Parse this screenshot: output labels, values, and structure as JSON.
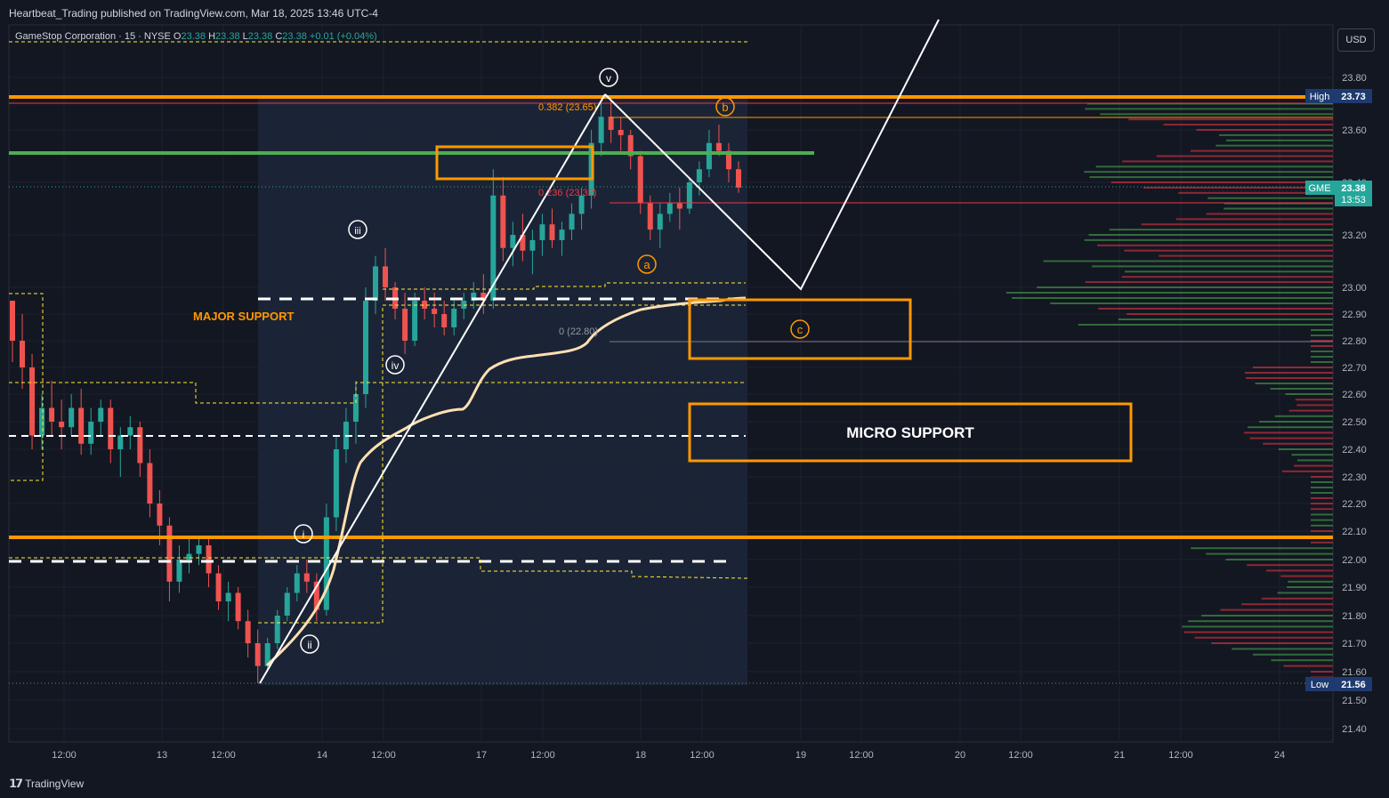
{
  "header": {
    "publisher": "Heartbeat_Trading published on TradingView.com, Mar 18, 2025 13:46 UTC-4",
    "currency": "USD"
  },
  "legend": {
    "symbol": "GameStop Corporation · 15 · NYSE",
    "o_label": "O",
    "o_value": "23.38",
    "h_label": "H",
    "h_value": "23.38",
    "l_label": "L",
    "l_value": "23.38",
    "c_label": "C",
    "c_value": "23.38",
    "change": "+0.01 (+0.04%)"
  },
  "footer": {
    "brand": "TradingView"
  },
  "colors": {
    "background": "#131722",
    "up": "#26a69a",
    "down": "#ef5350",
    "orange": "#ff9800",
    "green_line": "#4caf50",
    "white": "#ffffff",
    "vwap": "#ffe0b2",
    "fib_red": "#f23645"
  },
  "chart_data": {
    "type": "candlestick",
    "symbol": "GME",
    "ylim": [
      21.4,
      23.85
    ],
    "y_ticks": [
      "23.80",
      "23.60",
      "23.40",
      "23.20",
      "23.00",
      "22.90",
      "22.80",
      "22.70",
      "22.60",
      "22.50",
      "22.40",
      "22.30",
      "22.20",
      "22.10",
      "22.00",
      "21.90",
      "21.80",
      "21.70",
      "21.60",
      "21.50",
      "21.40"
    ],
    "x_ticks": [
      "12:00",
      "13",
      "12:00",
      "14",
      "12:00",
      "17",
      "12:00",
      "18",
      "12:00",
      "19",
      "12:00",
      "20",
      "12:00",
      "21",
      "12:00",
      "24"
    ],
    "price_badges": {
      "high_label": "High",
      "high_value": "23.73",
      "symbol_label": "GME",
      "last_value": "23.38",
      "countdown": "13:53",
      "low_label": "Low",
      "low_value": "21.56"
    },
    "candles": [
      [
        22.95,
        22.95,
        22.72,
        22.8
      ],
      [
        22.8,
        22.9,
        22.62,
        22.7
      ],
      [
        22.7,
        22.75,
        22.4,
        22.45
      ],
      [
        22.45,
        22.6,
        22.4,
        22.55
      ],
      [
        22.55,
        22.65,
        22.45,
        22.5
      ],
      [
        22.5,
        22.58,
        22.4,
        22.48
      ],
      [
        22.48,
        22.6,
        22.45,
        22.55
      ],
      [
        22.55,
        22.62,
        22.38,
        22.42
      ],
      [
        22.42,
        22.55,
        22.38,
        22.5
      ],
      [
        22.5,
        22.58,
        22.45,
        22.55
      ],
      [
        22.55,
        22.58,
        22.35,
        22.4
      ],
      [
        22.4,
        22.48,
        22.3,
        22.45
      ],
      [
        22.45,
        22.52,
        22.4,
        22.48
      ],
      [
        22.48,
        22.5,
        22.3,
        22.35
      ],
      [
        22.35,
        22.4,
        22.15,
        22.2
      ],
      [
        22.2,
        22.25,
        22.05,
        22.12
      ],
      [
        22.12,
        22.15,
        21.85,
        21.92
      ],
      [
        21.92,
        22.05,
        21.88,
        22.0
      ],
      [
        22.0,
        22.08,
        21.95,
        22.02
      ],
      [
        22.02,
        22.08,
        21.98,
        22.05
      ],
      [
        22.05,
        22.08,
        21.9,
        21.95
      ],
      [
        21.95,
        21.98,
        21.82,
        21.85
      ],
      [
        21.85,
        21.92,
        21.78,
        21.88
      ],
      [
        21.88,
        21.9,
        21.75,
        21.78
      ],
      [
        21.78,
        21.82,
        21.65,
        21.7
      ],
      [
        21.7,
        21.75,
        21.56,
        21.62
      ],
      [
        21.62,
        21.72,
        21.6,
        21.7
      ],
      [
        21.7,
        21.82,
        21.68,
        21.8
      ],
      [
        21.8,
        21.9,
        21.78,
        21.88
      ],
      [
        21.88,
        21.98,
        21.85,
        21.95
      ],
      [
        21.95,
        22.0,
        21.88,
        21.92
      ],
      [
        21.92,
        21.95,
        21.78,
        21.82
      ],
      [
        21.82,
        22.2,
        21.8,
        22.15
      ],
      [
        22.15,
        22.45,
        22.1,
        22.4
      ],
      [
        22.4,
        22.55,
        22.35,
        22.5
      ],
      [
        22.5,
        22.65,
        22.42,
        22.6
      ],
      [
        22.6,
        23.0,
        22.55,
        22.95
      ],
      [
        22.95,
        23.12,
        22.9,
        23.08
      ],
      [
        23.08,
        23.15,
        22.95,
        23.0
      ],
      [
        23.0,
        23.02,
        22.88,
        22.92
      ],
      [
        22.92,
        22.98,
        22.75,
        22.8
      ],
      [
        22.8,
        22.98,
        22.78,
        22.95
      ],
      [
        22.95,
        23.0,
        22.88,
        22.92
      ],
      [
        22.92,
        22.98,
        22.85,
        22.9
      ],
      [
        22.9,
        22.95,
        22.82,
        22.85
      ],
      [
        22.85,
        22.95,
        22.82,
        22.92
      ],
      [
        22.92,
        22.98,
        22.88,
        22.95
      ],
      [
        22.95,
        23.02,
        22.92,
        22.98
      ],
      [
        22.98,
        23.05,
        22.9,
        22.95
      ],
      [
        22.95,
        23.45,
        22.92,
        23.35
      ],
      [
        23.35,
        23.42,
        23.1,
        23.15
      ],
      [
        23.15,
        23.25,
        23.08,
        23.2
      ],
      [
        23.2,
        23.28,
        23.1,
        23.14
      ],
      [
        23.14,
        23.22,
        23.05,
        23.18
      ],
      [
        23.18,
        23.28,
        23.12,
        23.24
      ],
      [
        23.24,
        23.3,
        23.15,
        23.18
      ],
      [
        23.18,
        23.25,
        23.12,
        23.22
      ],
      [
        23.22,
        23.32,
        23.18,
        23.28
      ],
      [
        23.28,
        23.38,
        23.22,
        23.35
      ],
      [
        23.35,
        23.6,
        23.3,
        23.55
      ],
      [
        23.55,
        23.7,
        23.5,
        23.65
      ],
      [
        23.65,
        23.73,
        23.55,
        23.6
      ],
      [
        23.6,
        23.65,
        23.52,
        23.58
      ],
      [
        23.58,
        23.6,
        23.45,
        23.5
      ],
      [
        23.5,
        23.52,
        23.28,
        23.32
      ],
      [
        23.32,
        23.35,
        23.18,
        23.22
      ],
      [
        23.22,
        23.32,
        23.15,
        23.28
      ],
      [
        23.28,
        23.36,
        23.25,
        23.32
      ],
      [
        23.32,
        23.38,
        23.22,
        23.3
      ],
      [
        23.3,
        23.42,
        23.28,
        23.4
      ],
      [
        23.4,
        23.48,
        23.35,
        23.45
      ],
      [
        23.45,
        23.6,
        23.42,
        23.55
      ],
      [
        23.55,
        23.62,
        23.5,
        23.52
      ],
      [
        23.52,
        23.55,
        23.4,
        23.45
      ],
      [
        23.45,
        23.48,
        23.36,
        23.38
      ]
    ]
  },
  "annotations": {
    "wave_i": "i",
    "wave_ii": "ii",
    "wave_iii": "iii",
    "wave_iv": "iv",
    "wave_v": "v",
    "wave_a": "a",
    "wave_b": "b",
    "wave_c": "c",
    "major_support": "MAJOR SUPPORT",
    "micro_support": "MICRO SUPPORT",
    "fib_0382": "0.382 (23.65)",
    "fib_0236": "0.236 (23.32)",
    "fib_0": "0 (22.80)"
  }
}
